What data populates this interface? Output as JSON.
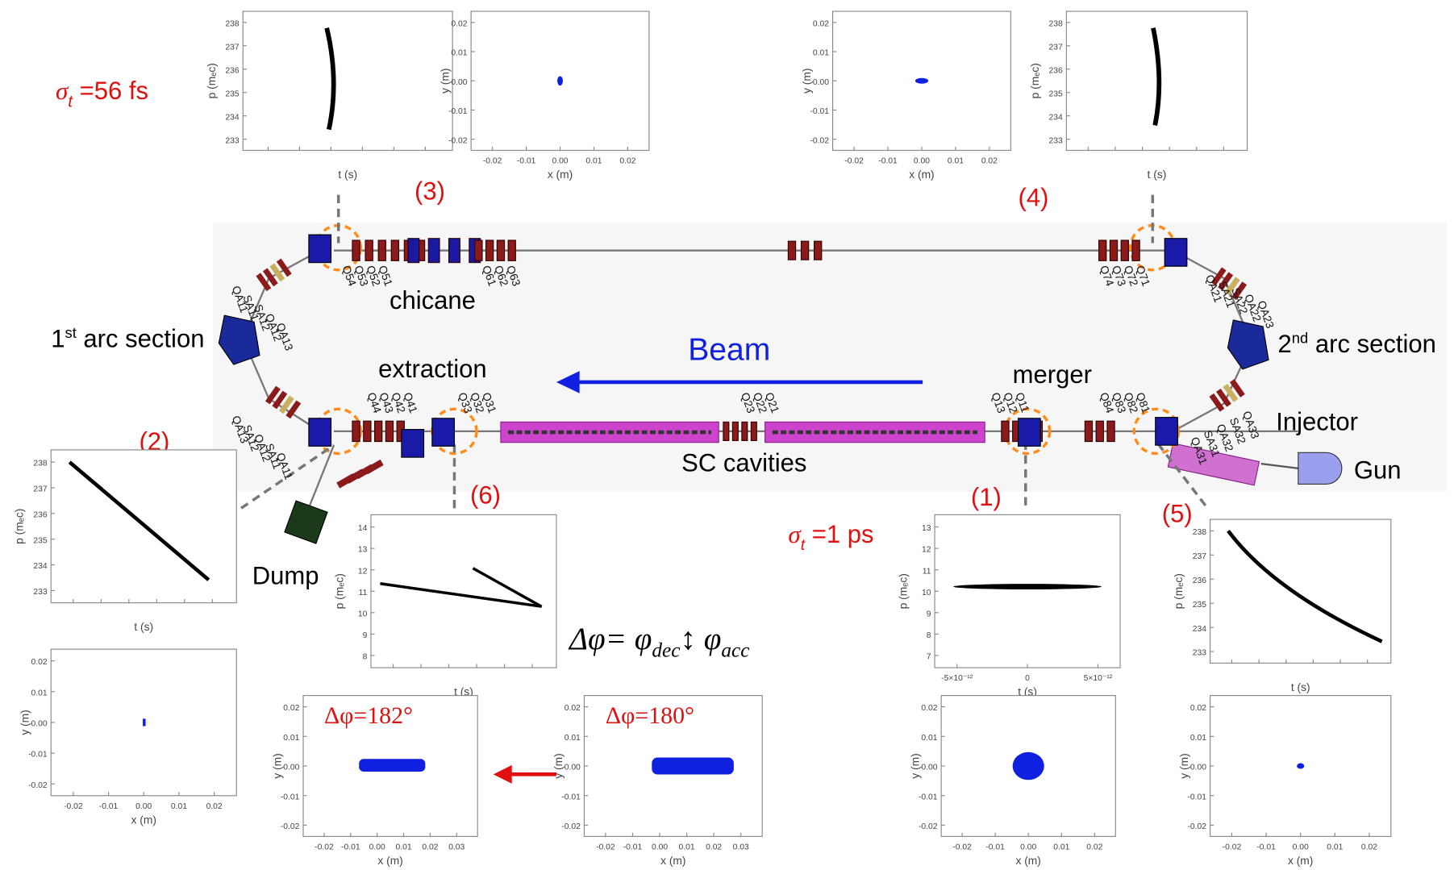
{
  "labels": {
    "sigma_top": {
      "sym": "σ",
      "sub": "t",
      "rest": " =56 fs"
    },
    "sigma_mid": {
      "sym": "σ",
      "sub": "t",
      "rest": " =1 ps"
    },
    "arc1": {
      "num": "1",
      "sup": "st",
      "rest": " arc section"
    },
    "arc2": {
      "num": "2",
      "sup": "nd",
      "rest": " arc section"
    },
    "chicane": "chicane",
    "extraction": "extraction",
    "merger": "merger",
    "beam": "Beam",
    "cavities": "SC cavities",
    "injector": "Injector",
    "gun": "Gun",
    "dump": "Dump",
    "markers": [
      "(1)",
      "(2)",
      "(3)",
      "(4)",
      "(5)",
      "(6)"
    ],
    "formula": {
      "lhs": "Δφ= φ",
      "dec": "dec",
      "mid": "↕ φ",
      "acc": "acc"
    }
  },
  "magnet_labels": [
    "Q61",
    "Q62",
    "Q63",
    "Q51",
    "Q52",
    "Q53",
    "Q54",
    "QA11",
    "SA11",
    "SA12",
    "QA12",
    "QA13",
    "Q71",
    "Q72",
    "Q73",
    "Q74",
    "QA21",
    "SA21",
    "SA22",
    "QA22",
    "QA23",
    "QA13",
    "SA12",
    "QA12",
    "SA11",
    "QA11",
    "Q41",
    "Q42",
    "Q43",
    "Q44",
    "Q31",
    "Q32",
    "Q33",
    "Q21",
    "Q22",
    "Q23",
    "Q11",
    "Q12",
    "Q13",
    "Q81",
    "Q82",
    "Q83",
    "Q84",
    "QA33",
    "SA32",
    "QA32",
    "SA31",
    "QA31"
  ],
  "plots": [
    {
      "kind": "tp",
      "xticks": [],
      "yticks": [
        "238",
        "237",
        "236",
        "235",
        "234",
        "233"
      ],
      "xlabel": "t (s)",
      "ylabel": "p (mₑc)"
    },
    {
      "kind": "xy",
      "xticks": [
        "-0.02",
        "-0.01",
        "0.00",
        "0.01",
        "0.02"
      ],
      "yticks": [
        "0.02",
        "0.01",
        "0.00",
        "-0.01",
        "-0.02"
      ],
      "xlabel": "x (m)",
      "ylabel": "y (m)"
    },
    {
      "kind": "xy",
      "xticks": [
        "-0.02",
        "-0.01",
        "0.00",
        "0.01",
        "0.02"
      ],
      "yticks": [
        "0.02",
        "0.01",
        "0.00",
        "-0.01",
        "-0.02"
      ],
      "xlabel": "x (m)",
      "ylabel": "y (m)"
    },
    {
      "kind": "tp",
      "xticks": [],
      "yticks": [
        "238",
        "237",
        "236",
        "235",
        "234",
        "233"
      ],
      "xlabel": "t (s)",
      "ylabel": "p (mₑc)"
    },
    {
      "kind": "tp",
      "xticks": [],
      "yticks": [
        "238",
        "237",
        "236",
        "235",
        "234",
        "233"
      ],
      "xlabel": "t (s)",
      "ylabel": "p (mₑc)"
    },
    {
      "kind": "xy",
      "xticks": [
        "-0.02",
        "-0.01",
        "0.00",
        "0.01",
        "0.02"
      ],
      "yticks": [
        "0.02",
        "0.01",
        "0.00",
        "-0.01",
        "-0.02"
      ],
      "xlabel": "x (m)",
      "ylabel": "y (m)"
    },
    {
      "kind": "tp",
      "xticks": [],
      "yticks": [
        "14",
        "13",
        "12",
        "11",
        "10",
        "9",
        "8"
      ],
      "xlabel": "t (s)",
      "ylabel": "p (mₑc)"
    },
    {
      "kind": "xy",
      "xticks": [
        "-0.02",
        "-0.01",
        "0.00",
        "0.01",
        "0.02",
        "0.03"
      ],
      "yticks": [
        "0.02",
        "0.01",
        "0.00",
        "-0.01",
        "-0.02"
      ],
      "xlabel": "x (m)",
      "ylabel": "y (m)",
      "note": "Δφ=182°"
    },
    {
      "kind": "xy",
      "xticks": [
        "-0.02",
        "-0.01",
        "0.00",
        "0.01",
        "0.02",
        "0.03"
      ],
      "yticks": [
        "0.02",
        "0.01",
        "0.00",
        "-0.01",
        "-0.02"
      ],
      "xlabel": "x (m)",
      "ylabel": "y (m)",
      "note": "Δφ=180°"
    },
    {
      "kind": "tp",
      "xticks": [
        "-5×10⁻¹²",
        "0",
        "5×10⁻¹²"
      ],
      "yticks": [
        "13",
        "12",
        "11",
        "10",
        "9",
        "8",
        "7"
      ],
      "xlabel": "t (s)",
      "ylabel": "p (mₑc)"
    },
    {
      "kind": "xy",
      "xticks": [
        "-0.02",
        "-0.01",
        "0.00",
        "0.01",
        "0.02"
      ],
      "yticks": [
        "0.02",
        "0.01",
        "0.00",
        "-0.01",
        "-0.02"
      ],
      "xlabel": "x (m)",
      "ylabel": "y (m)"
    },
    {
      "kind": "tp",
      "xticks": [],
      "yticks": [
        "238",
        "237",
        "236",
        "235",
        "234",
        "233"
      ],
      "xlabel": "t (s)",
      "ylabel": "p (mₑc)"
    },
    {
      "kind": "xy",
      "xticks": [
        "-0.02",
        "-0.01",
        "0.00",
        "0.01",
        "0.02"
      ],
      "yticks": [
        "0.02",
        "0.01",
        "0.00",
        "-0.01",
        "-0.02"
      ],
      "xlabel": "x (m)",
      "ylabel": "y (m)"
    }
  ]
}
